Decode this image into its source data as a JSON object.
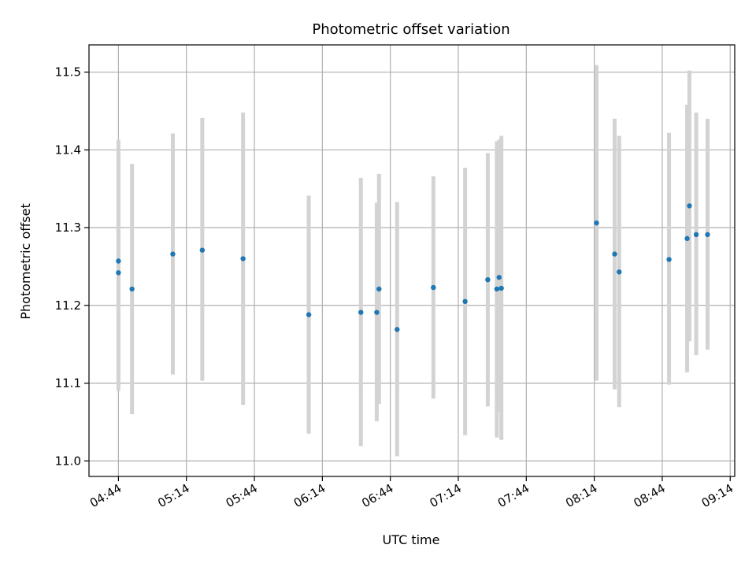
{
  "chart_data": {
    "type": "scatter",
    "title": "Photometric offset variation",
    "xlabel": "UTC time",
    "ylabel": "Photometric offset",
    "x_unit": "UTC HH:MM",
    "x_ticks": [
      "04:44",
      "05:14",
      "05:44",
      "06:14",
      "06:44",
      "07:14",
      "07:44",
      "08:14",
      "08:44",
      "09:14"
    ],
    "y_ticks": [
      "11.0",
      "11.1",
      "11.2",
      "11.3",
      "11.4",
      "11.5"
    ],
    "xlim": [
      "04:31",
      "09:16"
    ],
    "ylim": [
      10.98,
      11.535
    ],
    "grid": true,
    "colors": {
      "points": "#1f77b4",
      "errorbars": "#d3d3d3",
      "grid": "#b0b0b0"
    },
    "points": [
      {
        "x": "04:44",
        "y": 11.257,
        "ylow": 11.09,
        "yhigh": 11.413
      },
      {
        "x": "04:44",
        "y": 11.242,
        "ylow": 11.097,
        "yhigh": 11.395
      },
      {
        "x": "04:50",
        "y": 11.221,
        "ylow": 11.06,
        "yhigh": 11.382
      },
      {
        "x": "05:08",
        "y": 11.266,
        "ylow": 11.111,
        "yhigh": 11.421
      },
      {
        "x": "05:21",
        "y": 11.271,
        "ylow": 11.103,
        "yhigh": 11.441
      },
      {
        "x": "05:39",
        "y": 11.26,
        "ylow": 11.072,
        "yhigh": 11.448
      },
      {
        "x": "06:08",
        "y": 11.188,
        "ylow": 11.035,
        "yhigh": 11.341
      },
      {
        "x": "06:31",
        "y": 11.191,
        "ylow": 11.019,
        "yhigh": 11.364
      },
      {
        "x": "06:38",
        "y": 11.191,
        "ylow": 11.051,
        "yhigh": 11.332
      },
      {
        "x": "06:39",
        "y": 11.221,
        "ylow": 11.073,
        "yhigh": 11.369
      },
      {
        "x": "06:47",
        "y": 11.169,
        "ylow": 11.006,
        "yhigh": 11.333
      },
      {
        "x": "07:03",
        "y": 11.223,
        "ylow": 11.08,
        "yhigh": 11.366
      },
      {
        "x": "07:17",
        "y": 11.205,
        "ylow": 11.033,
        "yhigh": 11.377
      },
      {
        "x": "07:27",
        "y": 11.233,
        "ylow": 11.07,
        "yhigh": 11.396
      },
      {
        "x": "07:31",
        "y": 11.221,
        "ylow": 11.03,
        "yhigh": 11.411
      },
      {
        "x": "07:32",
        "y": 11.236,
        "ylow": 11.063,
        "yhigh": 11.413
      },
      {
        "x": "07:33",
        "y": 11.222,
        "ylow": 11.027,
        "yhigh": 11.418
      },
      {
        "x": "08:15",
        "y": 11.306,
        "ylow": 11.103,
        "yhigh": 11.509
      },
      {
        "x": "08:23",
        "y": 11.266,
        "ylow": 11.092,
        "yhigh": 11.44
      },
      {
        "x": "08:25",
        "y": 11.243,
        "ylow": 11.069,
        "yhigh": 11.418
      },
      {
        "x": "08:47",
        "y": 11.259,
        "ylow": 11.098,
        "yhigh": 11.422
      },
      {
        "x": "08:55",
        "y": 11.286,
        "ylow": 11.114,
        "yhigh": 11.458
      },
      {
        "x": "08:56",
        "y": 11.328,
        "ylow": 11.154,
        "yhigh": 11.502
      },
      {
        "x": "08:59",
        "y": 11.291,
        "ylow": 11.136,
        "yhigh": 11.448
      },
      {
        "x": "09:04",
        "y": 11.291,
        "ylow": 11.143,
        "yhigh": 11.44
      }
    ]
  }
}
